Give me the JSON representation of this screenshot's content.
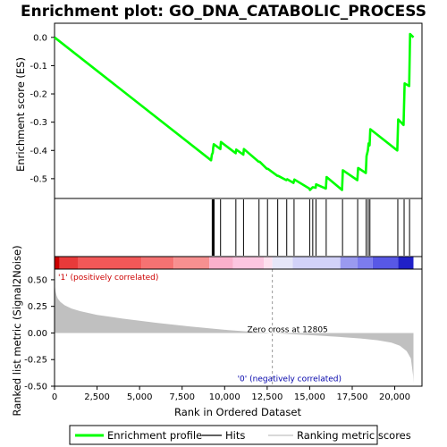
{
  "chart_data": {
    "title": "Enrichment plot: GO_DNA_CATABOLIC_PROCESS",
    "es_panel": {
      "type": "line",
      "ylabel": "Enrichment score (ES)",
      "ylim": [
        -0.57,
        0.05
      ],
      "yticks": [
        "0.0",
        "-0.1",
        "-0.2",
        "-0.3",
        "-0.4",
        "-0.5"
      ],
      "ytick_values": [
        0.0,
        -0.1,
        -0.2,
        -0.3,
        -0.4,
        -0.5
      ],
      "series": [
        {
          "name": "Enrichment profile",
          "color": "#00ff00",
          "x": [
            0,
            9200,
            9250,
            9300,
            9330,
            9360,
            9750,
            9780,
            10650,
            10680,
            11100,
            11130,
            12000,
            12060,
            12480,
            12540,
            13100,
            13150,
            13620,
            13680,
            14050,
            14100,
            14980,
            15020,
            15180,
            15350,
            15380,
            15950,
            15990,
            16900,
            16950,
            17800,
            17850,
            18300,
            18340,
            18420,
            18460,
            18520,
            18560,
            20150,
            20200,
            20520,
            20580,
            20850,
            20900,
            21100
          ],
          "y": [
            0.0,
            -0.435,
            -0.415,
            -0.408,
            -0.39,
            -0.378,
            -0.395,
            -0.37,
            -0.41,
            -0.397,
            -0.415,
            -0.395,
            -0.44,
            -0.44,
            -0.465,
            -0.465,
            -0.49,
            -0.49,
            -0.505,
            -0.502,
            -0.515,
            -0.503,
            -0.535,
            -0.54,
            -0.53,
            -0.532,
            -0.52,
            -0.535,
            -0.494,
            -0.54,
            -0.47,
            -0.505,
            -0.462,
            -0.48,
            -0.42,
            -0.4,
            -0.375,
            -0.382,
            -0.325,
            -0.4,
            -0.29,
            -0.31,
            -0.163,
            -0.172,
            0.012,
            0.0
          ]
        }
      ]
    },
    "hits_panel": {
      "type": "scatter",
      "positions": [
        9270,
        9320,
        9350,
        9380,
        9760,
        10660,
        11110,
        12020,
        12520,
        13120,
        13650,
        14080,
        15000,
        15180,
        15370,
        15970,
        16930,
        17820,
        18320,
        18440,
        18540,
        20180,
        20550,
        20870
      ]
    },
    "ranked_panel": {
      "type": "area",
      "color": "#c0c0c0",
      "ylabel": "Ranked list metric (Signal2Noise)",
      "ylim": [
        -0.5,
        0.6
      ],
      "yticks": [
        "0.50",
        "0.25",
        "0.00",
        "-0.25",
        "-0.50"
      ],
      "ytick_values": [
        0.5,
        0.25,
        0.0,
        -0.25,
        -0.5
      ],
      "x": [
        0,
        20,
        60,
        120,
        200,
        350,
        600,
        1000,
        1500,
        2500,
        4000,
        6000,
        8000,
        10000,
        11500,
        12805,
        14000,
        15500,
        17000,
        18000,
        19000,
        19800,
        20300,
        20700,
        20950,
        21080,
        21100
      ],
      "y": [
        0.56,
        0.44,
        0.39,
        0.35,
        0.32,
        0.29,
        0.26,
        0.23,
        0.205,
        0.17,
        0.135,
        0.095,
        0.06,
        0.03,
        0.012,
        0.0,
        -0.012,
        -0.025,
        -0.04,
        -0.052,
        -0.068,
        -0.09,
        -0.12,
        -0.17,
        -0.24,
        -0.4,
        -0.47
      ],
      "zero_cross": 12805,
      "annotation": "Zero cross at 12805",
      "pos_label": "'1' (positively correlated)",
      "neg_label": "'0' (negatively correlated)"
    },
    "xaxis": {
      "label": "Rank in Ordered Dataset",
      "xlim": [
        0,
        21600
      ],
      "ticks": [
        "0",
        "2,500",
        "5,000",
        "7,500",
        "10,000",
        "12,500",
        "15,000",
        "17,500",
        "20,000"
      ],
      "tick_values": [
        0,
        2500,
        5000,
        7500,
        10000,
        12500,
        15000,
        17500,
        20000
      ]
    },
    "heatmap_bar": {
      "segments": [
        {
          "from": 0,
          "to": 300,
          "color": "#cc0000"
        },
        {
          "from": 300,
          "to": 1400,
          "color": "#e83a3a"
        },
        {
          "from": 1400,
          "to": 5100,
          "color": "#f25858"
        },
        {
          "from": 5100,
          "to": 7000,
          "color": "#f57272"
        },
        {
          "from": 7000,
          "to": 9100,
          "color": "#f79090"
        },
        {
          "from": 9100,
          "to": 10500,
          "color": "#fab0cc"
        },
        {
          "from": 10500,
          "to": 12300,
          "color": "#fcc6e0"
        },
        {
          "from": 12300,
          "to": 12805,
          "color": "#fde0ee"
        },
        {
          "from": 12805,
          "to": 14000,
          "color": "#e6e6f8"
        },
        {
          "from": 14000,
          "to": 16800,
          "color": "#d2d2f8"
        },
        {
          "from": 16800,
          "to": 17800,
          "color": "#9a9af0"
        },
        {
          "from": 17800,
          "to": 18700,
          "color": "#7c7cee"
        },
        {
          "from": 18700,
          "to": 20200,
          "color": "#5858e6"
        },
        {
          "from": 20200,
          "to": 21100,
          "color": "#2020c8"
        }
      ]
    },
    "legend": {
      "items": [
        {
          "label": "Enrichment profile",
          "color": "#00ff00",
          "kind": "thick-line"
        },
        {
          "label": "Hits",
          "color": "#000000",
          "kind": "line"
        },
        {
          "label": "Ranking metric scores",
          "color": "#c0c0c0",
          "kind": "line"
        }
      ]
    }
  }
}
